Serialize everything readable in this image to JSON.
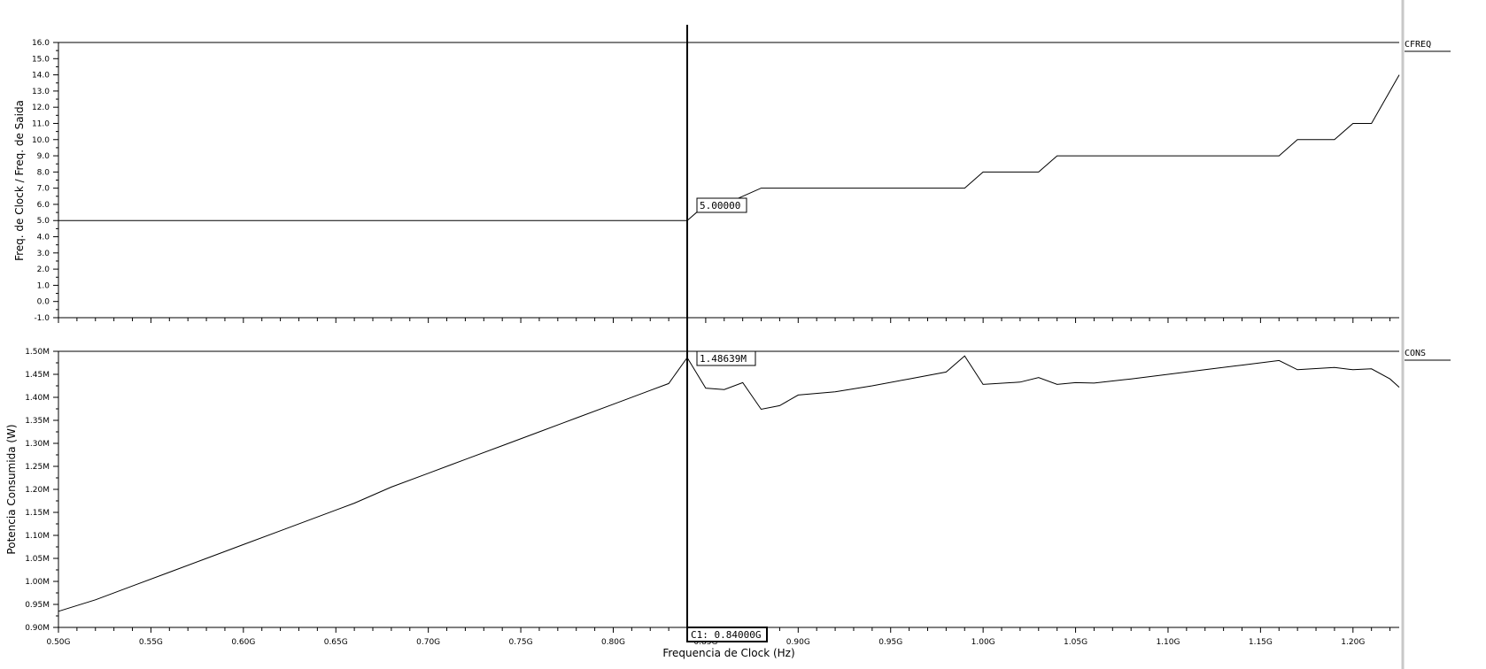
{
  "chart_data": [
    {
      "type": "line",
      "signal_name": "CFREQ",
      "ylabel": "Freq. de Clock / Freq. de Saida",
      "ylim": [
        -1.0,
        16.0
      ],
      "xlim": [
        0.5,
        1.225
      ],
      "y_ticks": [
        "-1.0",
        "0.0",
        "1.0",
        "2.0",
        "3.0",
        "4.0",
        "5.0",
        "6.0",
        "7.0",
        "8.0",
        "9.0",
        "10.0",
        "11.0",
        "12.0",
        "13.0",
        "14.0",
        "15.0",
        "16.0"
      ],
      "marker_value": "5.00000",
      "series": [
        {
          "x": [
            0.5,
            0.84,
            0.845,
            0.86,
            0.87,
            0.88,
            0.99,
            1.0,
            1.03,
            1.04,
            1.16,
            1.17,
            1.19,
            1.2,
            1.21,
            1.225
          ],
          "y": [
            5,
            5,
            5.5,
            6,
            6.5,
            7,
            7,
            8,
            8,
            9,
            9,
            10,
            10,
            11,
            11,
            14
          ]
        }
      ]
    },
    {
      "type": "line",
      "signal_name": "CONS",
      "ylabel": "Potencia Consumida (W)",
      "xlabel": "Frequencia de Clock (Hz)",
      "ylim": [
        0.9,
        1.5
      ],
      "xlim": [
        0.5,
        1.225
      ],
      "y_ticks": [
        "0.90M",
        "0.95M",
        "1.00M",
        "1.05M",
        "1.10M",
        "1.15M",
        "1.20M",
        "1.25M",
        "1.30M",
        "1.35M",
        "1.40M",
        "1.45M",
        "1.50M"
      ],
      "x_ticks": [
        "0.50G",
        "0.55G",
        "0.60G",
        "0.65G",
        "0.70G",
        "0.75G",
        "0.80G",
        "0.85G",
        "0.90G",
        "0.95G",
        "1.00G",
        "1.05G",
        "1.10G",
        "1.15G",
        "1.20G"
      ],
      "marker_value": "1.48639M",
      "series": [
        {
          "x": [
            0.5,
            0.52,
            0.54,
            0.56,
            0.58,
            0.6,
            0.62,
            0.64,
            0.66,
            0.68,
            0.7,
            0.72,
            0.74,
            0.76,
            0.78,
            0.8,
            0.82,
            0.83,
            0.84,
            0.85,
            0.86,
            0.87,
            0.88,
            0.89,
            0.9,
            0.92,
            0.94,
            0.96,
            0.98,
            0.99,
            1.0,
            1.02,
            1.03,
            1.04,
            1.05,
            1.06,
            1.08,
            1.1,
            1.12,
            1.14,
            1.16,
            1.17,
            1.19,
            1.2,
            1.21,
            1.22,
            1.225
          ],
          "y": [
            0.935,
            0.96,
            0.99,
            1.02,
            1.05,
            1.08,
            1.11,
            1.14,
            1.17,
            1.205,
            1.235,
            1.265,
            1.295,
            1.325,
            1.355,
            1.385,
            1.415,
            1.43,
            1.4864,
            1.42,
            1.417,
            1.432,
            1.374,
            1.382,
            1.405,
            1.412,
            1.425,
            1.44,
            1.455,
            1.49,
            1.428,
            1.433,
            1.443,
            1.428,
            1.432,
            1.431,
            1.44,
            1.45,
            1.46,
            1.47,
            1.48,
            1.46,
            1.465,
            1.46,
            1.462,
            1.44,
            1.422
          ]
        }
      ]
    }
  ],
  "cursor": {
    "label": "C1: 0.84000G",
    "x": 0.84
  }
}
